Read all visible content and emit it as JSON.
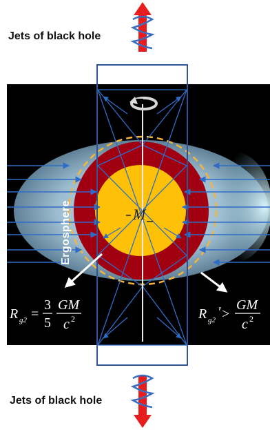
{
  "jets_top": "Jets of black hole",
  "jets_bottom": "Jets of black hole",
  "ergosphere": "Ergosphere",
  "mass": "M",
  "eq_left": {
    "R": "R",
    "sub": "g2",
    "eq": "=",
    "num": "3",
    "den": "5",
    "fnum": "GM",
    "fden": "c",
    "pow": "2"
  },
  "eq_right": {
    "R": "R",
    "sub": "g2",
    "prime": "′",
    "gt": ">",
    "fnum": "GM",
    "fden": "c",
    "pow": "2"
  },
  "colors": {
    "background": "#000000",
    "core": "#FFC107",
    "shell": "#A00010",
    "ergosphere": "#8FB3C7",
    "field_lines": "#2F6CC8",
    "box": "#2E5597",
    "jets": "#E81E1E",
    "horizon": "#F5B43A"
  }
}
